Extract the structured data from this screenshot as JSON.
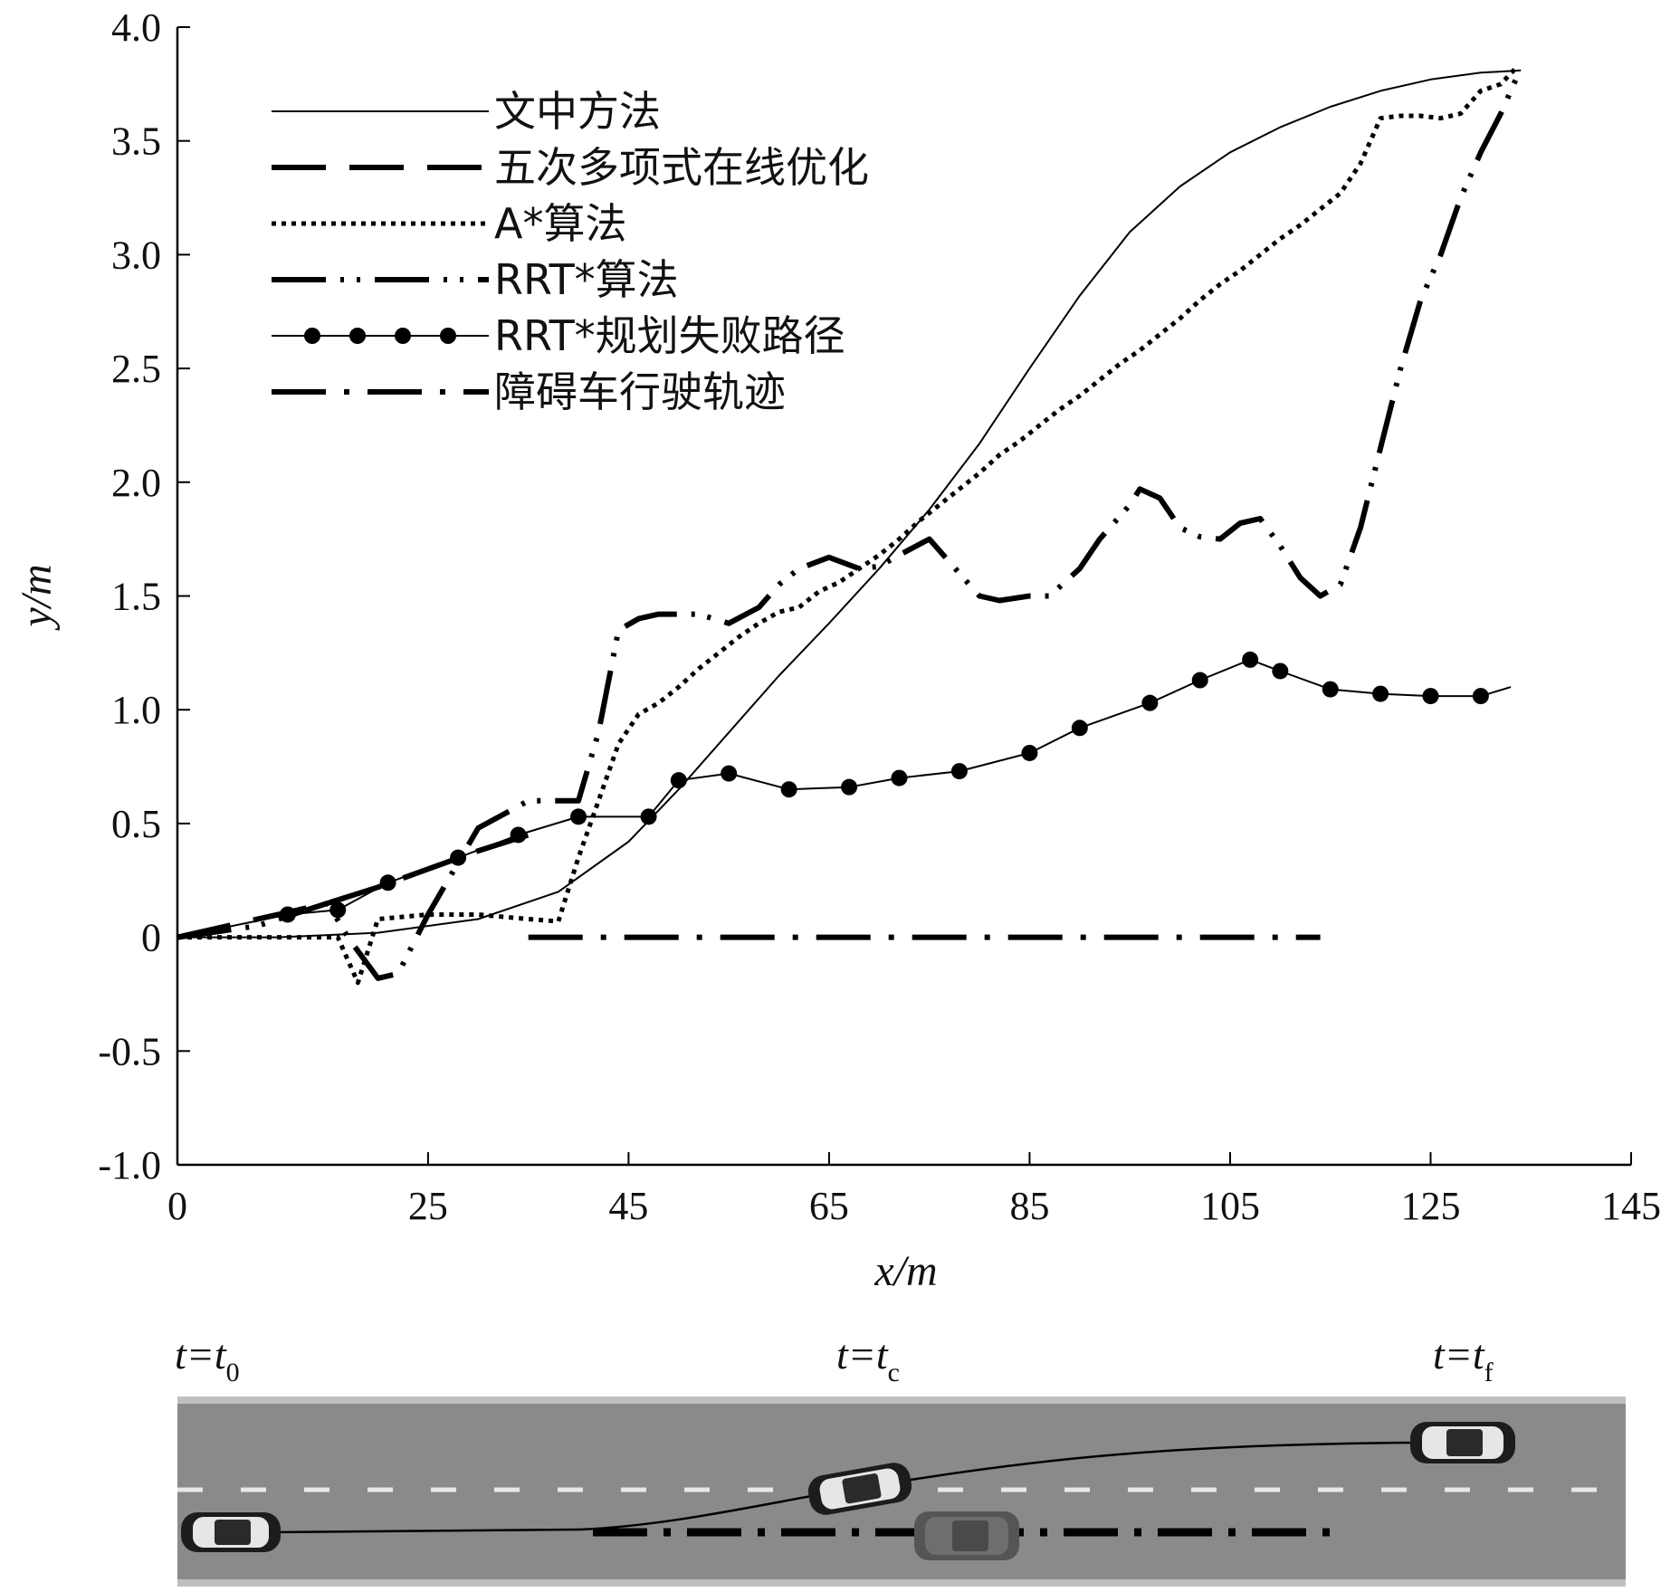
{
  "chart_data": {
    "type": "line",
    "xlabel": "x/m",
    "ylabel": "y/m",
    "xlim": [
      0,
      145
    ],
    "ylim": [
      -1.0,
      4.0
    ],
    "xticks": [
      0,
      25,
      45,
      65,
      85,
      105,
      125,
      145
    ],
    "xtick_labels": [
      "0",
      "25",
      "45",
      "65",
      "85",
      "105",
      "125",
      "145"
    ],
    "yticks": [
      -1.0,
      -0.5,
      0,
      0.5,
      1.0,
      1.5,
      2.0,
      2.5,
      3.0,
      3.5,
      4.0
    ],
    "ytick_labels": [
      "-1.0",
      "-0.5",
      "0",
      "0.5",
      "1.0",
      "1.5",
      "2.0",
      "2.5",
      "3.0",
      "3.5",
      "4.0"
    ],
    "grid": false,
    "legend_position": "top-left",
    "series": [
      {
        "name": "文中方法",
        "style": "solid-thin",
        "x": [
          0,
          10,
          20,
          30,
          38,
          45,
          50,
          55,
          60,
          65,
          70,
          75,
          80,
          85,
          90,
          95,
          100,
          105,
          110,
          115,
          120,
          125,
          130,
          134
        ],
        "y": [
          0,
          0.0,
          0.02,
          0.08,
          0.2,
          0.42,
          0.65,
          0.9,
          1.15,
          1.38,
          1.62,
          1.88,
          2.17,
          2.5,
          2.82,
          3.1,
          3.3,
          3.45,
          3.56,
          3.65,
          3.72,
          3.77,
          3.8,
          3.81
        ]
      },
      {
        "name": "五次多项式在线优化",
        "style": "long-dash",
        "x": [
          0,
          5,
          10,
          15,
          20,
          25,
          30,
          35
        ],
        "y": [
          0,
          0.05,
          0.1,
          0.15,
          0.22,
          0.3,
          0.38,
          0.45
        ]
      },
      {
        "name": "A*算法",
        "style": "dotted",
        "x": [
          0,
          16,
          18,
          20,
          25,
          30,
          35,
          38,
          40,
          42,
          44,
          46,
          48,
          50,
          52,
          54,
          56,
          58,
          60,
          62,
          64,
          66,
          68,
          70,
          72,
          74,
          76,
          78,
          80,
          82,
          84,
          86,
          88,
          90,
          92,
          94,
          96,
          98,
          100,
          102,
          104,
          106,
          108,
          110,
          112,
          114,
          116,
          118,
          120,
          122,
          124,
          126,
          128,
          130,
          132,
          133.5
        ],
        "y": [
          0,
          0,
          -0.2,
          0.08,
          0.1,
          0.1,
          0.08,
          0.07,
          0.35,
          0.6,
          0.85,
          0.98,
          1.03,
          1.1,
          1.18,
          1.25,
          1.32,
          1.38,
          1.43,
          1.45,
          1.52,
          1.56,
          1.62,
          1.68,
          1.75,
          1.83,
          1.9,
          1.97,
          2.04,
          2.12,
          2.18,
          2.25,
          2.32,
          2.38,
          2.45,
          2.52,
          2.58,
          2.65,
          2.72,
          2.8,
          2.87,
          2.93,
          3.0,
          3.07,
          3.13,
          3.2,
          3.27,
          3.4,
          3.6,
          3.61,
          3.61,
          3.6,
          3.62,
          3.72,
          3.75,
          3.82
        ]
      },
      {
        "name": "RRT*算法",
        "style": "dash-dot-dot",
        "x": [
          0,
          8,
          15,
          17,
          20,
          22,
          25,
          30,
          35,
          37,
          40,
          42,
          44,
          46,
          48,
          52,
          55,
          58,
          60,
          62,
          65,
          68,
          70,
          72,
          75,
          78,
          80,
          82,
          85,
          87,
          90,
          92,
          95,
          96,
          98,
          100,
          102,
          104,
          106,
          108,
          110,
          112,
          114,
          116,
          118,
          120,
          122,
          124,
          126,
          128,
          130,
          132,
          134
        ],
        "y": [
          0,
          0.05,
          0.15,
          0.0,
          -0.18,
          -0.16,
          0.1,
          0.48,
          0.6,
          0.6,
          0.6,
          0.9,
          1.35,
          1.4,
          1.42,
          1.42,
          1.38,
          1.45,
          1.55,
          1.62,
          1.67,
          1.62,
          1.63,
          1.68,
          1.75,
          1.6,
          1.5,
          1.48,
          1.5,
          1.5,
          1.62,
          1.75,
          1.9,
          1.97,
          1.93,
          1.8,
          1.76,
          1.75,
          1.82,
          1.84,
          1.72,
          1.58,
          1.5,
          1.55,
          1.8,
          2.15,
          2.5,
          2.8,
          3.0,
          3.25,
          3.45,
          3.62,
          3.82
        ]
      },
      {
        "name": "RRT*规划失败路径",
        "style": "solid-with-markers",
        "x": [
          0,
          11,
          16,
          21,
          28,
          34,
          40,
          47,
          50,
          55,
          61,
          67,
          72,
          78,
          85,
          90,
          97,
          102,
          107,
          110,
          115,
          120,
          125,
          130,
          133
        ],
        "y": [
          0,
          0.1,
          0.12,
          0.24,
          0.35,
          0.45,
          0.53,
          0.53,
          0.69,
          0.72,
          0.65,
          0.66,
          0.7,
          0.73,
          0.81,
          0.92,
          1.03,
          1.13,
          1.22,
          1.17,
          1.09,
          1.07,
          1.06,
          1.06,
          1.1
        ]
      },
      {
        "name": "障碍车行驶轨迹",
        "style": "dash-dot",
        "x": [
          35,
          114
        ],
        "y": [
          0,
          0
        ]
      }
    ]
  },
  "scene": {
    "t0_label": "t=t",
    "t0_sub": "0",
    "tc_label": "t=t",
    "tc_sub": "c",
    "tf_label": "t=t",
    "tf_sub": "f"
  }
}
